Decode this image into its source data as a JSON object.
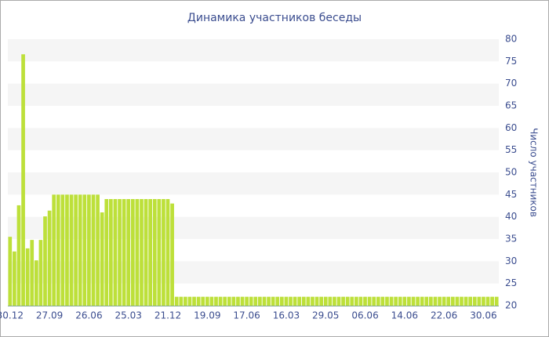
{
  "chart_data": {
    "type": "bar",
    "title": "Динамика участников беседы",
    "y_axis_label": "Число участников",
    "y_axis_side": "right",
    "categories": [
      "30.12",
      null,
      null,
      null,
      null,
      null,
      null,
      null,
      null,
      "27.09",
      null,
      null,
      null,
      null,
      null,
      null,
      null,
      null,
      "26.06",
      null,
      null,
      null,
      null,
      null,
      null,
      null,
      null,
      "25.03",
      null,
      null,
      null,
      null,
      null,
      null,
      null,
      null,
      "21.12",
      null,
      null,
      null,
      null,
      null,
      null,
      null,
      null,
      "19.09",
      null,
      null,
      null,
      null,
      null,
      null,
      null,
      null,
      "17.06",
      null,
      null,
      null,
      null,
      null,
      null,
      null,
      null,
      "16.03",
      null,
      null,
      null,
      null,
      null,
      null,
      null,
      null,
      "29.05",
      null,
      null,
      null,
      null,
      null,
      null,
      null,
      null,
      "06.06",
      null,
      null,
      null,
      null,
      null,
      null,
      null,
      null,
      "14.06",
      null,
      null,
      null,
      null,
      null,
      null,
      null,
      null,
      "22.06",
      null,
      null,
      null,
      null,
      null,
      null,
      null,
      null,
      "30.06",
      null,
      null,
      null
    ],
    "values": [
      35.5,
      32.2,
      42.6,
      76.6,
      32.9,
      34.8,
      30.2,
      34.8,
      40.1,
      41.4,
      45,
      45,
      45,
      45,
      45,
      45,
      45,
      45,
      45,
      45,
      45,
      41,
      44,
      44,
      44,
      44,
      44,
      44,
      44,
      44,
      44,
      44,
      44,
      44,
      44,
      44,
      44,
      43,
      22,
      22,
      22,
      22,
      22,
      22,
      22,
      22,
      22,
      22,
      22,
      22,
      22,
      22,
      22,
      22,
      22,
      22,
      22,
      22,
      22,
      22,
      22,
      22,
      22,
      22,
      22,
      22,
      22,
      22,
      22,
      22,
      22,
      22,
      22,
      22,
      22,
      22,
      22,
      22,
      22,
      22,
      22,
      22,
      22,
      22,
      22,
      22,
      22,
      22,
      22,
      22,
      22,
      22,
      22,
      22,
      22,
      22,
      22,
      22,
      22,
      22,
      22,
      22,
      22,
      22,
      22,
      22,
      22,
      22,
      22,
      22,
      22,
      22
    ],
    "color": "#bde03a",
    "ylim": [
      20,
      80
    ],
    "yticks": [
      20,
      25,
      30,
      35,
      40,
      45,
      50,
      55,
      60,
      65,
      70,
      75,
      80
    ],
    "grid_bands": true
  }
}
